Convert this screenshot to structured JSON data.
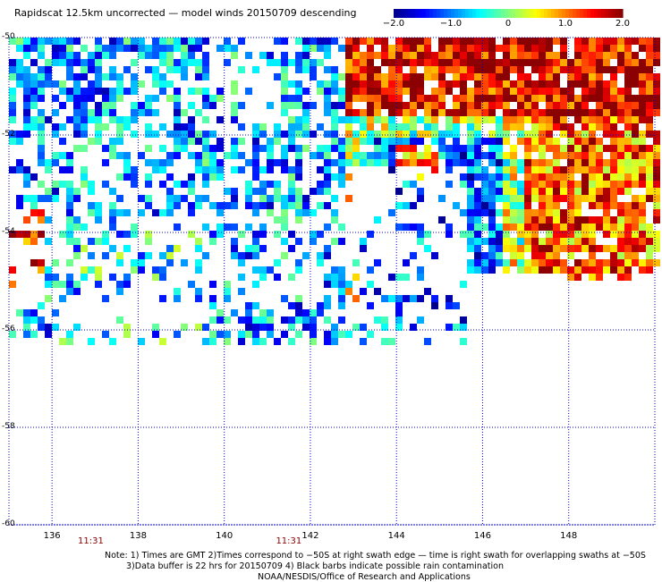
{
  "title": "Rapidscat 12.5km uncorrected — model winds 20150709 descending",
  "colorbar": {
    "ticks": [
      {
        "value": -2.0,
        "label": "−2.0"
      },
      {
        "value": -1.0,
        "label": "−1.0"
      },
      {
        "value": 0,
        "label": "0"
      },
      {
        "value": 1.0,
        "label": "1.0"
      },
      {
        "value": 2.0,
        "label": "2.0"
      }
    ],
    "range": [
      -2.0,
      2.0
    ],
    "colors": [
      "#00008b",
      "#0000ff",
      "#0080ff",
      "#00ffff",
      "#80ff80",
      "#ffff00",
      "#ff8000",
      "#ff0000",
      "#8b0000"
    ]
  },
  "map": {
    "lat_range": [
      -60,
      -50
    ],
    "lon_range": [
      135.0,
      150.0
    ],
    "lat_ticks": [
      {
        "value": -50,
        "label": "-50"
      },
      {
        "value": -52,
        "label": "-52"
      },
      {
        "value": -54,
        "label": "-54"
      },
      {
        "value": -56,
        "label": "-56"
      },
      {
        "value": -58,
        "label": "-58"
      },
      {
        "value": -60,
        "label": "-60"
      }
    ],
    "lon_ticks": [
      {
        "value": 136,
        "label": "136"
      },
      {
        "value": 138,
        "label": "138"
      },
      {
        "value": 140,
        "label": "140"
      },
      {
        "value": 142,
        "label": "142"
      },
      {
        "value": 144,
        "label": "144"
      },
      {
        "value": 146,
        "label": "146"
      },
      {
        "value": 148,
        "label": "148"
      }
    ],
    "time_labels": [
      {
        "lon": 136.9,
        "label": "11:31"
      },
      {
        "lon": 141.5,
        "label": "11:31"
      }
    ],
    "grid": true,
    "gridline_color": "#0000cc"
  },
  "notes": {
    "line1": "Note: 1) Times are GMT 2)Times correspond to −50S at right swath edge — time is right swath for overlapping swaths at −50S",
    "line2": "3)Data buffer is 22 hrs for 20150709 4) Black barbs indicate possible rain contamination",
    "line3": "NOAA/NESDIS/Office of Research and Applications"
  }
}
